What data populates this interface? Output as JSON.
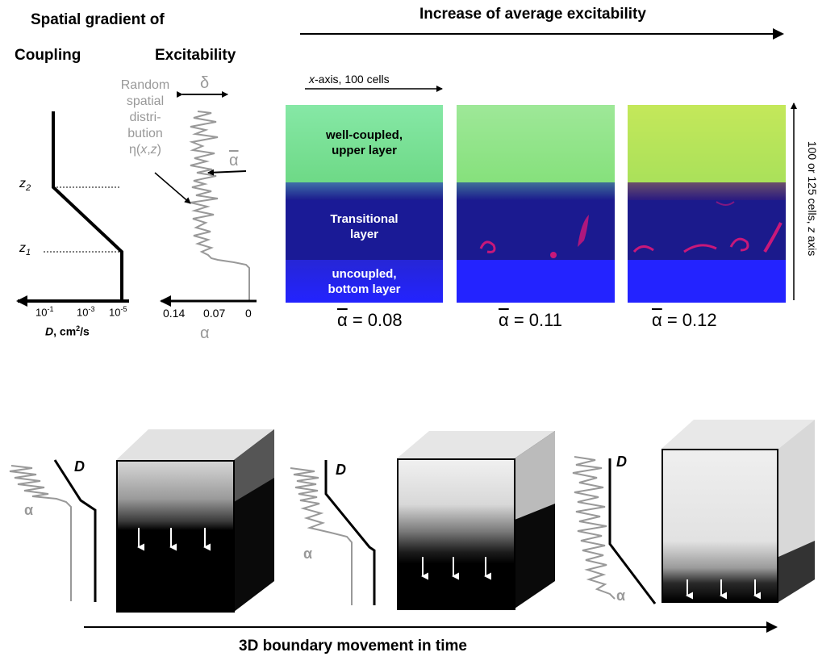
{
  "colors": {
    "upper": "#7ee08a",
    "upper_bright": "#b8e35a",
    "transition": "#1a1a9a",
    "bottom": "#2222ff",
    "spiral": "#c8187a",
    "profile_gray": "#999999"
  },
  "header": {
    "spatial_title": "Spatial gradient of",
    "coupling_title": "Coupling",
    "excitability_title": "Excitability",
    "increase_title": "Increase of average excitability"
  },
  "coupling_plot": {
    "z2": "z",
    "z2_sub": "2",
    "z1": "z",
    "z1_sub": "1",
    "ticks": [
      {
        "base": "10",
        "exp": "-1"
      },
      {
        "base": "10",
        "exp": "-3"
      },
      {
        "base": "10",
        "exp": "-5"
      }
    ],
    "axis_label_d": "D",
    "axis_label_unit": ", cm",
    "axis_label_exp": "2",
    "axis_label_tail": "/s"
  },
  "excitability_plot": {
    "delta": "δ",
    "alpha_bar": "α",
    "random_lines": [
      "Random",
      "spatial",
      "distri-",
      "bution"
    ],
    "eta_prefix": "η(",
    "eta_x": "x",
    "eta_sep": ",",
    "eta_z": "z",
    "eta_suffix": ")",
    "ticks": [
      "0.14",
      "0.07",
      "0"
    ],
    "axis_label": "α"
  },
  "panels": {
    "x_axis_label_italic": "x",
    "x_axis_label_rest": "-axis, 100 cells",
    "z_axis_label_plain": "100 or 125 cells, ",
    "z_axis_label_italic": "z",
    "z_axis_label_tail": " axis",
    "layer_labels": {
      "upper": [
        "well-coupled,",
        "upper layer"
      ],
      "transitional": [
        "Transitional",
        "layer"
      ],
      "bottom": [
        "uncoupled,",
        "bottom layer"
      ]
    },
    "items": [
      {
        "alpha_symbol": "α",
        "alpha_value": " = 0.08"
      },
      {
        "alpha_symbol": "α",
        "alpha_value": " = 0.11"
      },
      {
        "alpha_symbol": "α",
        "alpha_value": " = 0.12"
      }
    ]
  },
  "bottom_row": {
    "d_label": "D",
    "alpha_label": "α",
    "caption": "3D boundary movement in time"
  }
}
